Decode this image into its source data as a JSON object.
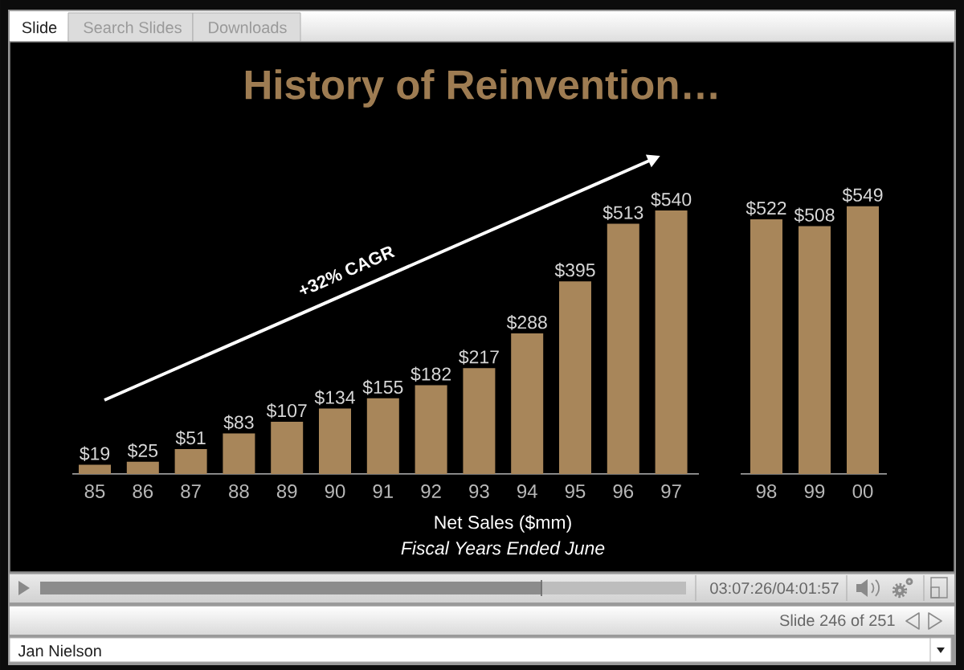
{
  "chart_data": [
    {
      "type": "bar",
      "title": "History of Reinvention…",
      "xlabel": "Net Sales ($mm)",
      "categories": [
        "85",
        "86",
        "87",
        "88",
        "89",
        "90",
        "91",
        "92",
        "93",
        "94",
        "95",
        "96",
        "97"
      ],
      "values": [
        19,
        25,
        51,
        83,
        107,
        134,
        155,
        182,
        217,
        288,
        395,
        513,
        540
      ],
      "value_labels": [
        "$19",
        "$25",
        "$51",
        "$83",
        "$107",
        "$134",
        "$155",
        "$182",
        "$217",
        "$288",
        "$395",
        "$513",
        "$540"
      ],
      "color": "#a8865a",
      "tick_labels": "x",
      "annotations": [
        "+32% CAGR",
        "Fiscal Years Ended June",
        "Slide",
        "Search Slides",
        "Downloads",
        "03:07:26/04:01:57",
        "Slide 246 of 251",
        "Jan Nielson"
      ]
    },
    {
      "type": "bar",
      "categories": [
        "98",
        "99",
        "00"
      ],
      "values": [
        522,
        508,
        549
      ],
      "value_labels": [
        "$522",
        "$508",
        "$549"
      ],
      "color": "#a8865a",
      "tick_labels": "x"
    }
  ]
}
